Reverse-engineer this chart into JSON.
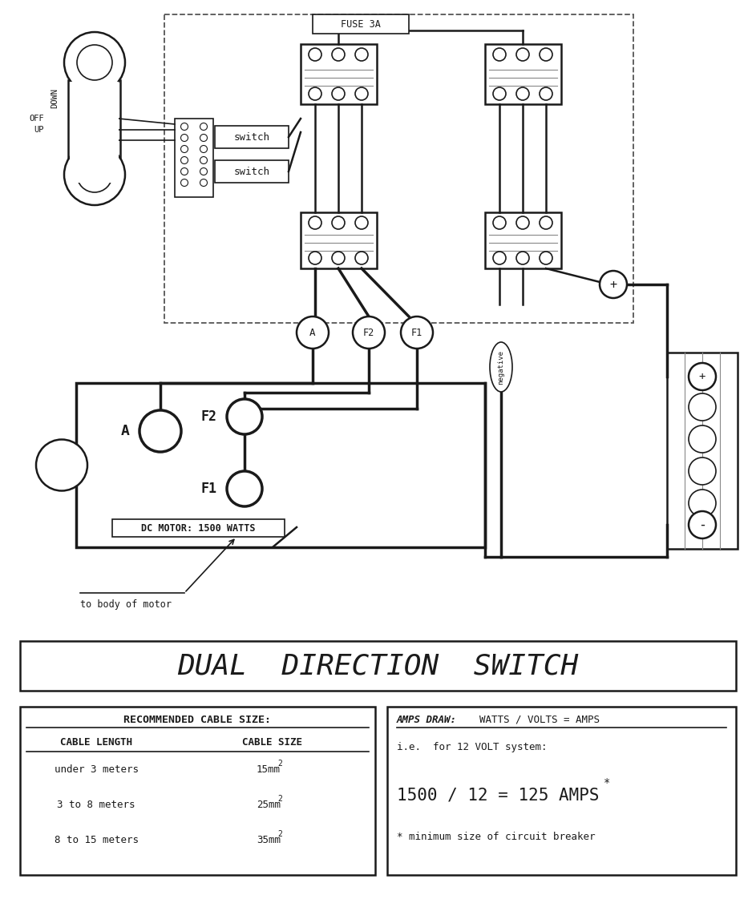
{
  "bg_color": "#ffffff",
  "line_color": "#1a1a1a",
  "gray_line": "#666666",
  "title": "DUAL  DIRECTION  SWITCH",
  "fuse_label": "FUSE 3A",
  "motor_label": "DC MOTOR: 1500 WATTS",
  "body_label": "to body of motor",
  "off_label": "OFF",
  "up_label": "UP",
  "down_label": "DOWN",
  "switch_label": "switch",
  "plus_label": "+",
  "minus_label": "-",
  "negative_label": "negative",
  "terminal_A": "A",
  "terminal_F2": "F2",
  "terminal_F1": "F1",
  "motor_A": "A",
  "motor_F2": "F2",
  "motor_F1": "F1",
  "rec_cable_title": "RECOMMENDED CABLE SIZE:",
  "rec_col1_header": "CABLE LENGTH",
  "rec_col2_header": "CABLE SIZE",
  "rec_row1_col1": "under 3 meters",
  "rec_row1_col2": "15mm",
  "rec_row2_col1": "3 to 8 meters",
  "rec_row2_col2": "25mm",
  "rec_row3_col1": "8 to 15 meters",
  "rec_row3_col2": "35mm",
  "amps_title_left": "AMPS DRAW:",
  "amps_title_right": "WATTS / VOLTS = AMPS",
  "amps_line1": "i.e.  for 12 VOLT system:",
  "amps_line2": "1500 / 12 = 125 AMPS",
  "amps_star": "*",
  "amps_line3": "* minimum size of circuit breaker"
}
